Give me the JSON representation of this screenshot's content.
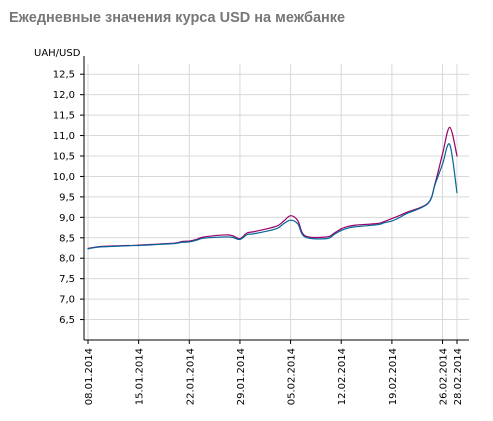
{
  "title": "Ежедневные значения курса USD на межбанке",
  "chart_data": {
    "type": "line",
    "title": "Ежедневные значения курса USD на межбанке",
    "ylabel": "UAH/USD",
    "xlabel": "",
    "ylim": [
      6.0,
      12.75
    ],
    "yticks": [
      "6,5",
      "7,0",
      "7,5",
      "8,0",
      "8,5",
      "9,0",
      "9,5",
      "10,0",
      "10,5",
      "11,0",
      "11,5",
      "12,0",
      "12,5"
    ],
    "xticks": [
      "08.01.2014",
      "15.01.2014",
      "22.01.2014",
      "29.01.2014",
      "05.02.2014",
      "12.02.2014",
      "19.02.2014",
      "26.02.2014",
      "28.02.2014"
    ],
    "grid": true,
    "legend": "none",
    "x": [
      "08.01.2014",
      "09.01.2014",
      "10.01.2014",
      "13.01.2014",
      "14.01.2014",
      "15.01.2014",
      "16.01.2014",
      "17.01.2014",
      "20.01.2014",
      "21.01.2014",
      "22.01.2014",
      "23.01.2014",
      "24.01.2014",
      "27.01.2014",
      "28.01.2014",
      "29.01.2014",
      "30.01.2014",
      "31.01.2014",
      "03.02.2014",
      "04.02.2014",
      "05.02.2014",
      "06.02.2014",
      "07.02.2014",
      "10.02.2014",
      "11.02.2014",
      "12.02.2014",
      "13.02.2014",
      "14.02.2014",
      "17.02.2014",
      "18.02.2014",
      "19.02.2014",
      "20.02.2014",
      "21.02.2014",
      "24.02.2014",
      "25.02.2014",
      "26.02.2014",
      "27.02.2014",
      "28.02.2014"
    ],
    "series": [
      {
        "color": "#990066",
        "values": [
          8.24,
          8.27,
          8.29,
          8.31,
          8.31,
          8.32,
          8.33,
          8.34,
          8.37,
          8.41,
          8.42,
          8.46,
          8.52,
          8.57,
          8.55,
          8.48,
          8.62,
          8.65,
          8.78,
          8.9,
          9.04,
          8.92,
          8.55,
          8.52,
          8.61,
          8.72,
          8.78,
          8.81,
          8.85,
          8.9,
          8.97,
          9.04,
          9.12,
          9.35,
          9.85,
          10.55,
          11.2,
          10.5
        ]
      },
      {
        "color": "#006699",
        "values": [
          8.23,
          8.26,
          8.28,
          8.3,
          8.31,
          8.31,
          8.32,
          8.33,
          8.36,
          8.39,
          8.4,
          8.44,
          8.49,
          8.52,
          8.51,
          8.46,
          8.58,
          8.6,
          8.72,
          8.84,
          8.93,
          8.84,
          8.52,
          8.48,
          8.58,
          8.68,
          8.74,
          8.77,
          8.82,
          8.87,
          8.91,
          8.99,
          9.09,
          9.34,
          9.82,
          10.3,
          10.78,
          9.6
        ]
      }
    ]
  }
}
